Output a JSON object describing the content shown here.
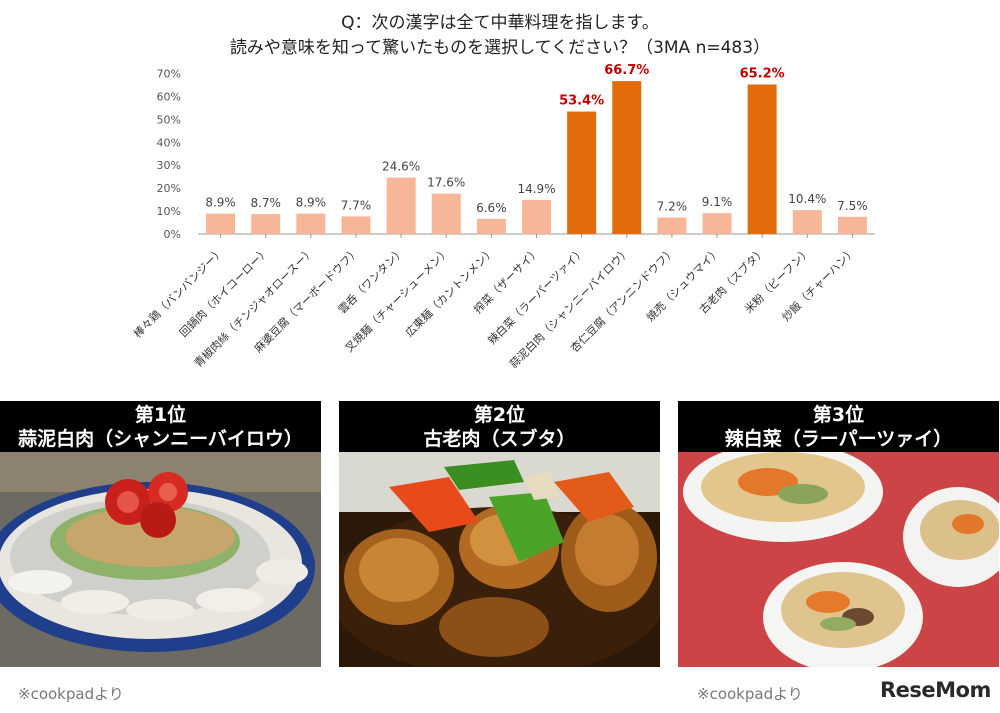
{
  "question": {
    "line1": "Q：次の漢字は全て中華料理を指します。",
    "line2": "読みや意味を知って驚いたものを選択してください？（3MA n=483）"
  },
  "chart_data": {
    "type": "bar",
    "categories": [
      "棒々鶏（バンバンジー）",
      "回鍋肉（ホイコーロー）",
      "青椒肉絲（チンジャオロースー）",
      "麻婆豆腐（マーボードウフ）",
      "雲呑（ワンタン）",
      "叉焼麺（チャーシューメン）",
      "広東麺（カントンメン）",
      "搾菜（ザーサイ）",
      "辣白菜（ラーパーツァイ）",
      "蒜泥白肉（シャンニーバイロウ）",
      "杏仁豆腐（アンニンドウフ）",
      "焼売（シュウマイ）",
      "古老肉（スブタ）",
      "米粉（ビーフン）",
      "炒飯（チャーハン）"
    ],
    "values": [
      8.9,
      8.7,
      8.9,
      7.7,
      24.6,
      17.6,
      6.6,
      14.9,
      53.4,
      66.7,
      7.2,
      9.1,
      65.2,
      10.4,
      7.5
    ],
    "value_labels": [
      "8.9%",
      "8.7%",
      "8.9%",
      "7.7%",
      "24.6%",
      "17.6%",
      "6.6%",
      "14.9%",
      "53.4%",
      "66.7%",
      "7.2%",
      "9.1%",
      "65.2%",
      "10.4%",
      "7.5%"
    ],
    "highlighted": [
      false,
      false,
      false,
      false,
      false,
      false,
      false,
      false,
      true,
      true,
      false,
      false,
      true,
      false,
      false
    ],
    "ylim": [
      0,
      70
    ],
    "yticks": [
      "0%",
      "10%",
      "20%",
      "30%",
      "40%",
      "50%",
      "60%",
      "70%"
    ],
    "colors": {
      "normal": "#F7B697",
      "highlight": "#E36C0A",
      "highlight_label": "#C00000",
      "axis": "#999999"
    }
  },
  "cards": [
    {
      "heading": "第1位",
      "dish": "蒜泥白肉（シャンニーバイロウ）"
    },
    {
      "heading": "第2位",
      "dish": "古老肉（スブタ）"
    },
    {
      "heading": "第3位",
      "dish": "辣白菜（ラーパーツァイ）"
    }
  ],
  "credits": {
    "left": "※cookpadより",
    "right": "※cookpadより"
  },
  "logo": {
    "text": "ReseMom"
  }
}
